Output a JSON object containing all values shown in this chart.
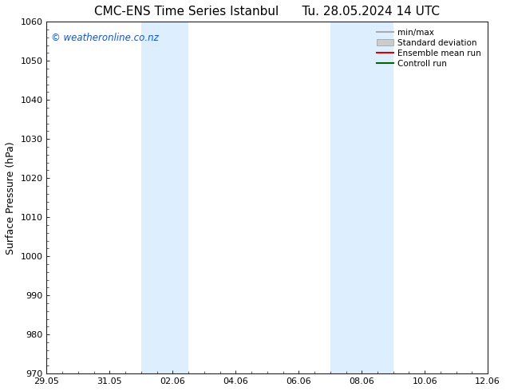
{
  "title_left": "CMC-ENS Time Series Istanbul",
  "title_right": "Tu. 28.05.2024 14 UTC",
  "ylabel": "Surface Pressure (hPa)",
  "ylim": [
    970,
    1060
  ],
  "yticks": [
    970,
    980,
    990,
    1000,
    1010,
    1020,
    1030,
    1040,
    1050,
    1060
  ],
  "xtick_labels": [
    "29.05",
    "31.05",
    "02.06",
    "04.06",
    "06.06",
    "08.06",
    "10.06",
    "12.06"
  ],
  "xtick_positions": [
    0,
    2,
    4,
    6,
    8,
    10,
    12,
    14
  ],
  "x_min": 0,
  "x_max": 14,
  "shaded_bands": [
    {
      "x_start": 3.0,
      "x_end": 4.5
    },
    {
      "x_start": 9.0,
      "x_end": 11.0
    }
  ],
  "shaded_color": "#ddeeff",
  "bg_color": "#ffffff",
  "watermark_text": "© weatheronline.co.nz",
  "watermark_color": "#1155cc",
  "legend_items": [
    {
      "label": "min/max",
      "color": "#aaaaaa",
      "type": "line",
      "linewidth": 1.5
    },
    {
      "label": "Standard deviation",
      "color": "#cccccc",
      "type": "patch"
    },
    {
      "label": "Ensemble mean run",
      "color": "#dd0000",
      "type": "line",
      "linewidth": 1.5
    },
    {
      "label": "Controll run",
      "color": "#006600",
      "type": "line",
      "linewidth": 1.5
    }
  ],
  "title_fontsize": 11,
  "ylabel_fontsize": 9,
  "tick_fontsize": 8,
  "legend_fontsize": 7.5,
  "watermark_fontsize": 8.5,
  "spine_color": "#222222",
  "tick_color": "#222222"
}
